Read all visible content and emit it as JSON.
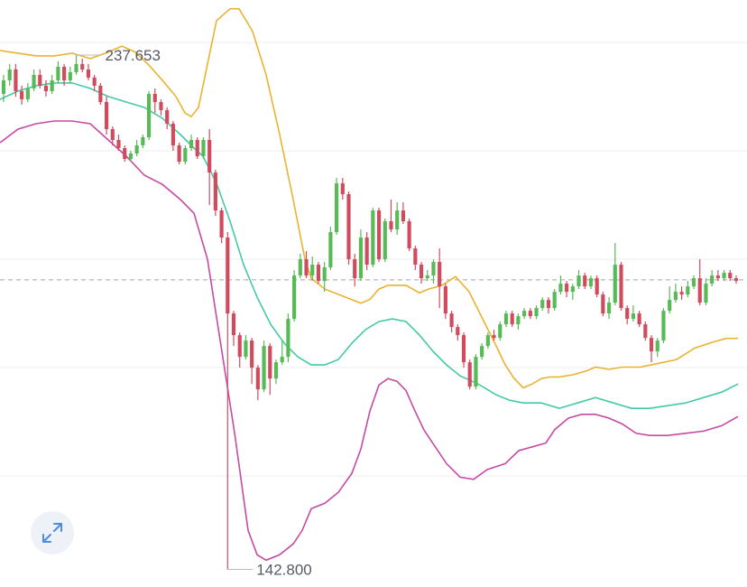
{
  "chart_data": {
    "type": "candlestick",
    "indicator": "bollinger-bands",
    "annotations": {
      "high_label": "237.653",
      "low_label": "142.800"
    },
    "reference_line": {
      "style": "dashed",
      "value": 196.2
    },
    "ylim": [
      140,
      247
    ],
    "grid": "horizontal",
    "colors": {
      "up": "#58b957",
      "down": "#d14b5e",
      "upper_band": "#e9b32f",
      "middle_band": "#45c9a5",
      "lower_band": "#c54aa5",
      "grid": "#eeeeee",
      "reference": "#a3a3a3",
      "annotation_line": "#bbbbbb"
    },
    "candles": [
      [
        230.5,
        233.0,
        234.0,
        229.0
      ],
      [
        233.0,
        235.0,
        236.0,
        232.0
      ],
      [
        235.0,
        231.0,
        236.0,
        230.0
      ],
      [
        231.0,
        229.5,
        232.0,
        228.5
      ],
      [
        229.5,
        231.5,
        232.5,
        229.0
      ],
      [
        231.5,
        234.0,
        235.0,
        231.0
      ],
      [
        234.0,
        232.0,
        235.0,
        231.5
      ],
      [
        232.0,
        231.0,
        233.0,
        230.0
      ],
      [
        231.0,
        233.0,
        234.0,
        230.5
      ],
      [
        233.0,
        235.5,
        236.5,
        232.5
      ],
      [
        235.5,
        233.0,
        236.0,
        232.0
      ],
      [
        233.0,
        234.5,
        235.5,
        232.5
      ],
      [
        234.5,
        236.0,
        237.653,
        234.0
      ],
      [
        236.0,
        235.0,
        237.0,
        234.5
      ],
      [
        235.0,
        233.5,
        236.0,
        233.0
      ],
      [
        233.5,
        232.0,
        234.0,
        231.0
      ],
      [
        232.0,
        229.0,
        232.5,
        228.5
      ],
      [
        229.0,
        224.0,
        230.0,
        223.0
      ],
      [
        224.0,
        222.0,
        224.5,
        221.0
      ],
      [
        222.0,
        220.5,
        223.0,
        220.0
      ],
      [
        220.5,
        218.5,
        221.0,
        218.0
      ],
      [
        218.5,
        219.5,
        220.0,
        218.0
      ],
      [
        219.5,
        221.0,
        222.0,
        219.0
      ],
      [
        221.0,
        222.5,
        223.0,
        220.5
      ],
      [
        222.5,
        230.5,
        231.0,
        222.0
      ],
      [
        230.5,
        229.0,
        231.5,
        227.0
      ],
      [
        229.0,
        227.5,
        229.5,
        226.5
      ],
      [
        227.5,
        225.0,
        228.0,
        224.0
      ],
      [
        225.0,
        221.0,
        225.5,
        220.0
      ],
      [
        221.0,
        218.0,
        221.5,
        217.5
      ],
      [
        218.0,
        220.5,
        221.0,
        217.5
      ],
      [
        220.5,
        222.0,
        223.0,
        220.0
      ],
      [
        222.0,
        219.0,
        222.5,
        218.5
      ],
      [
        219.0,
        222.0,
        222.5,
        218.5
      ],
      [
        222.0,
        216.0,
        224.0,
        210.0
      ],
      [
        216.0,
        209.0,
        216.5,
        208.0
      ],
      [
        209.0,
        204.0,
        209.5,
        203.0
      ],
      [
        204.0,
        190.0,
        205.0,
        142.8
      ],
      [
        190.0,
        186.0,
        190.5,
        184.0
      ],
      [
        186.0,
        182.0,
        186.5,
        180.0
      ],
      [
        182.0,
        185.0,
        186.0,
        181.5
      ],
      [
        185.0,
        180.0,
        185.5,
        177.0
      ],
      [
        180.0,
        176.0,
        180.5,
        174.0
      ],
      [
        176.0,
        184.0,
        185.0,
        175.5
      ],
      [
        184.0,
        178.0,
        184.5,
        175.0
      ],
      [
        178.0,
        181.0,
        181.5,
        177.0
      ],
      [
        181.0,
        182.0,
        185.0,
        180.5
      ],
      [
        182.0,
        189.0,
        190.0,
        181.0
      ],
      [
        189.0,
        197.0,
        198.0,
        188.5
      ],
      [
        197.0,
        200.0,
        201.0,
        196.5
      ],
      [
        200.0,
        197.0,
        201.5,
        196.5
      ],
      [
        197.0,
        199.0,
        200.5,
        196.0
      ],
      [
        199.0,
        196.0,
        199.5,
        195.5
      ],
      [
        196.0,
        198.5,
        199.5,
        194.0
      ],
      [
        198.5,
        205.0,
        206.0,
        198.0
      ],
      [
        205.0,
        214.0,
        215.0,
        204.5
      ],
      [
        214.0,
        212.0,
        215.0,
        211.0
      ],
      [
        212.0,
        200.0,
        212.5,
        199.0
      ],
      [
        200.0,
        196.5,
        201.0,
        195.0
      ],
      [
        196.5,
        204.0,
        205.5,
        196.0
      ],
      [
        204.0,
        199.0,
        205.0,
        198.0
      ],
      [
        199.0,
        209.0,
        209.5,
        198.5
      ],
      [
        209.0,
        200.0,
        209.5,
        199.5
      ],
      [
        200.0,
        207.0,
        207.5,
        199.5
      ],
      [
        207.0,
        205.5,
        211.0,
        205.0
      ],
      [
        205.5,
        209.0,
        210.5,
        204.5
      ],
      [
        209.0,
        207.0,
        210.5,
        206.5
      ],
      [
        207.0,
        202.0,
        207.5,
        201.5
      ],
      [
        202.0,
        199.0,
        202.5,
        198.0
      ],
      [
        199.0,
        196.5,
        199.5,
        195.5
      ],
      [
        196.5,
        197.0,
        198.0,
        196.0
      ],
      [
        197.0,
        199.5,
        200.0,
        195.5
      ],
      [
        199.5,
        195.0,
        202.0,
        191.0
      ],
      [
        195.0,
        190.0,
        195.5,
        189.0
      ],
      [
        190.0,
        187.5,
        190.5,
        186.5
      ],
      [
        187.5,
        186.0,
        188.0,
        185.0
      ],
      [
        186.0,
        181.0,
        186.5,
        180.0
      ],
      [
        181.0,
        176.5,
        181.5,
        176.0
      ],
      [
        176.5,
        182.0,
        182.5,
        176.0
      ],
      [
        182.0,
        184.0,
        184.5,
        181.5
      ],
      [
        184.0,
        186.0,
        186.5,
        183.5
      ],
      [
        186.0,
        185.5,
        187.0,
        185.0
      ],
      [
        185.5,
        188.0,
        188.5,
        185.0
      ],
      [
        188.0,
        190.0,
        190.5,
        187.5
      ],
      [
        190.0,
        188.0,
        190.5,
        187.5
      ],
      [
        188.0,
        189.5,
        190.0,
        187.0
      ],
      [
        189.5,
        190.5,
        191.0,
        189.0
      ],
      [
        190.5,
        189.5,
        191.0,
        189.0
      ],
      [
        189.5,
        191.0,
        191.5,
        189.0
      ],
      [
        191.0,
        192.5,
        193.0,
        190.5
      ],
      [
        192.5,
        191.0,
        193.0,
        190.0
      ],
      [
        191.0,
        194.0,
        194.5,
        190.5
      ],
      [
        194.0,
        195.5,
        197.0,
        193.5
      ],
      [
        195.5,
        194.0,
        196.0,
        193.0
      ],
      [
        194.0,
        195.0,
        195.5,
        192.5
      ],
      [
        195.0,
        197.0,
        198.0,
        194.5
      ],
      [
        197.0,
        195.0,
        197.5,
        194.5
      ],
      [
        195.0,
        196.5,
        197.0,
        194.5
      ],
      [
        196.5,
        193.5,
        197.0,
        193.0
      ],
      [
        193.5,
        190.0,
        194.0,
        189.5
      ],
      [
        190.0,
        192.0,
        193.0,
        189.0
      ],
      [
        192.0,
        199.0,
        203.0,
        191.5
      ],
      [
        199.0,
        191.0,
        199.5,
        190.5
      ],
      [
        191.0,
        189.0,
        191.5,
        188.0
      ],
      [
        189.0,
        190.0,
        191.5,
        188.5
      ],
      [
        190.0,
        188.0,
        190.5,
        187.5
      ],
      [
        188.0,
        185.5,
        188.5,
        185.0
      ],
      [
        185.5,
        183.0,
        186.0,
        181.0
      ],
      [
        183.0,
        185.0,
        185.5,
        182.0
      ],
      [
        185.0,
        190.5,
        191.0,
        184.5
      ],
      [
        190.5,
        192.5,
        195.0,
        190.0
      ],
      [
        192.5,
        194.0,
        195.5,
        192.0
      ],
      [
        194.0,
        193.5,
        195.0,
        192.5
      ],
      [
        193.5,
        195.0,
        196.0,
        193.0
      ],
      [
        195.0,
        196.5,
        197.0,
        194.5
      ],
      [
        196.5,
        192.0,
        200.0,
        191.5
      ],
      [
        192.0,
        195.5,
        196.5,
        191.5
      ],
      [
        195.5,
        197.0,
        198.0,
        195.0
      ],
      [
        197.0,
        196.5,
        198.0,
        196.0
      ],
      [
        196.5,
        197.5,
        198.0,
        196.0
      ],
      [
        197.5,
        196.5,
        198.0,
        196.0
      ],
      [
        196.5,
        196.0,
        197.0,
        195.5
      ]
    ],
    "bands": {
      "upper": [
        [
          0,
          238.5
        ],
        [
          20,
          238.0
        ],
        [
          40,
          237.5
        ],
        [
          60,
          237.5
        ],
        [
          80,
          238.0
        ],
        [
          100,
          237.0
        ],
        [
          120,
          238.2
        ],
        [
          135,
          239.3
        ],
        [
          150,
          238.2
        ],
        [
          165,
          235.8
        ],
        [
          180,
          233.0
        ],
        [
          195,
          230.0
        ],
        [
          205,
          227.0
        ],
        [
          212,
          226.3
        ],
        [
          220,
          228.0
        ],
        [
          230,
          236.0
        ],
        [
          240,
          244.0
        ],
        [
          255,
          246.2
        ],
        [
          265,
          246.2
        ],
        [
          280,
          242.0
        ],
        [
          295,
          234.0
        ],
        [
          310,
          223.0
        ],
        [
          325,
          211.0
        ],
        [
          338,
          200.0
        ],
        [
          345,
          196.5
        ],
        [
          360,
          194.5
        ],
        [
          380,
          193.2
        ],
        [
          400,
          191.9
        ],
        [
          410,
          192.6
        ],
        [
          420,
          194.5
        ],
        [
          430,
          195.2
        ],
        [
          450,
          195.2
        ],
        [
          465,
          193.8
        ],
        [
          475,
          194.5
        ],
        [
          490,
          195.2
        ],
        [
          505,
          196.8
        ],
        [
          520,
          194.0
        ],
        [
          535,
          189.0
        ],
        [
          550,
          184.0
        ],
        [
          560,
          180.5
        ],
        [
          570,
          178.0
        ],
        [
          580,
          176.3
        ],
        [
          590,
          177.0
        ],
        [
          600,
          178.0
        ],
        [
          610,
          178.3
        ],
        [
          620,
          178.3
        ],
        [
          635,
          178.7
        ],
        [
          650,
          179.4
        ],
        [
          660,
          180.1
        ],
        [
          675,
          179.7
        ],
        [
          690,
          180.1
        ],
        [
          710,
          180.1
        ],
        [
          730,
          180.8
        ],
        [
          750,
          181.5
        ],
        [
          770,
          183.6
        ],
        [
          790,
          184.7
        ],
        [
          805,
          185.4
        ],
        [
          818,
          185.4
        ]
      ],
      "middle": [
        [
          0,
          229.5
        ],
        [
          20,
          231.0
        ],
        [
          40,
          232.0
        ],
        [
          60,
          232.5
        ],
        [
          80,
          232.5
        ],
        [
          100,
          231.5
        ],
        [
          120,
          230.0
        ],
        [
          140,
          229.0
        ],
        [
          160,
          228.0
        ],
        [
          180,
          226.0
        ],
        [
          200,
          223.0
        ],
        [
          215,
          220.5
        ],
        [
          225,
          219.0
        ],
        [
          240,
          214.0
        ],
        [
          255,
          207.0
        ],
        [
          270,
          199.0
        ],
        [
          285,
          193.0
        ],
        [
          300,
          188.0
        ],
        [
          315,
          184.5
        ],
        [
          330,
          182.0
        ],
        [
          345,
          180.5
        ],
        [
          360,
          180.5
        ],
        [
          375,
          181.5
        ],
        [
          390,
          184.5
        ],
        [
          405,
          187.0
        ],
        [
          420,
          188.5
        ],
        [
          435,
          189.0
        ],
        [
          450,
          188.5
        ],
        [
          465,
          186.0
        ],
        [
          480,
          183.0
        ],
        [
          495,
          180.5
        ],
        [
          510,
          178.5
        ],
        [
          530,
          177.0
        ],
        [
          550,
          175.0
        ],
        [
          565,
          174.0
        ],
        [
          580,
          173.5
        ],
        [
          600,
          173.5
        ],
        [
          620,
          172.5
        ],
        [
          640,
          173.5
        ],
        [
          660,
          174.5
        ],
        [
          680,
          173.5
        ],
        [
          700,
          172.5
        ],
        [
          720,
          172.5
        ],
        [
          740,
          173.0
        ],
        [
          760,
          173.5
        ],
        [
          780,
          174.5
        ],
        [
          800,
          175.5
        ],
        [
          818,
          177.0
        ]
      ],
      "lower": [
        [
          0,
          221.5
        ],
        [
          20,
          224.0
        ],
        [
          40,
          225.0
        ],
        [
          60,
          225.5
        ],
        [
          80,
          225.5
        ],
        [
          100,
          225.0
        ],
        [
          120,
          222.0
        ],
        [
          140,
          219.0
        ],
        [
          160,
          215.5
        ],
        [
          180,
          213.8
        ],
        [
          200,
          211.0
        ],
        [
          215,
          208.5
        ],
        [
          230,
          200.0
        ],
        [
          245,
          184.0
        ],
        [
          260,
          168.0
        ],
        [
          275,
          150.0
        ],
        [
          285,
          145.5
        ],
        [
          295,
          144.5
        ],
        [
          310,
          145.5
        ],
        [
          325,
          147.5
        ],
        [
          335,
          150.0
        ],
        [
          345,
          154.0
        ],
        [
          360,
          155.0
        ],
        [
          375,
          157.0
        ],
        [
          390,
          160.5
        ],
        [
          400,
          165.0
        ],
        [
          410,
          172.0
        ],
        [
          420,
          176.8
        ],
        [
          430,
          178.0
        ],
        [
          440,
          177.5
        ],
        [
          450,
          175.8
        ],
        [
          460,
          172.0
        ],
        [
          470,
          168.5
        ],
        [
          480,
          166.0
        ],
        [
          495,
          162.3
        ],
        [
          510,
          159.8
        ],
        [
          525,
          159.4
        ],
        [
          540,
          161.2
        ],
        [
          560,
          162.3
        ],
        [
          575,
          164.7
        ],
        [
          590,
          165.4
        ],
        [
          605,
          166.1
        ],
        [
          615,
          168.6
        ],
        [
          630,
          170.7
        ],
        [
          645,
          171.4
        ],
        [
          660,
          171.4
        ],
        [
          675,
          170.7
        ],
        [
          690,
          169.6
        ],
        [
          705,
          167.9
        ],
        [
          720,
          167.5
        ],
        [
          740,
          167.5
        ],
        [
          760,
          167.9
        ],
        [
          780,
          168.3
        ],
        [
          800,
          169.3
        ],
        [
          818,
          171.0
        ]
      ]
    }
  }
}
